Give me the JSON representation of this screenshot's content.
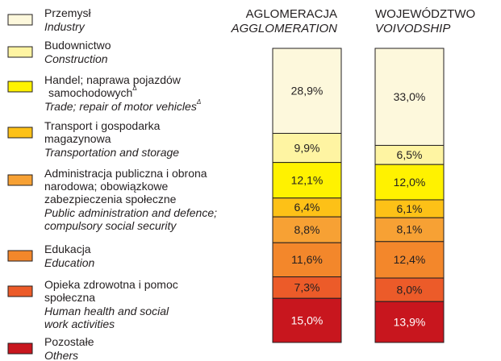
{
  "chart_data": {
    "type": "stacked_bar",
    "categories": [
      "AGLOMERACJA",
      "WOJEWÓDZTWO"
    ],
    "categories_en": [
      "AGGLOMERATION",
      "VOIVODSHIP"
    ],
    "ylim": [
      0,
      100
    ],
    "series": [
      {
        "name": [
          "Przemysł"
        ],
        "name_en": [
          "Industry"
        ],
        "color": "#fdf8dc",
        "values": [
          28.9,
          33.0
        ],
        "value_labels": [
          "28,9%",
          "33,0%"
        ]
      },
      {
        "name": [
          "Budownictwo"
        ],
        "name_en": [
          "Construction"
        ],
        "color": "#fef4a2",
        "values": [
          9.9,
          6.5
        ],
        "value_labels": [
          "9,9%",
          "6,5%"
        ]
      },
      {
        "name": [
          "Handel; naprawa pojazdów",
          "samochodowych"
        ],
        "name_mark": "Δ",
        "name_en": [
          "Trade; repair of motor vehicles"
        ],
        "name_en_mark": "Δ",
        "color": "#fff200",
        "values": [
          12.1,
          12.0
        ],
        "value_labels": [
          "12,1%",
          "12,0%"
        ]
      },
      {
        "name": [
          "Transport i gospodarka",
          "magazynowa"
        ],
        "name_en": [
          "Transportation and storage"
        ],
        "color": "#fdc117",
        "values": [
          6.4,
          6.1
        ],
        "value_labels": [
          "6,4%",
          "6,1%"
        ]
      },
      {
        "name": [
          "Administracja publiczna i obrona",
          "narodowa; obowiązkowe",
          "zabezpieczenia społeczne"
        ],
        "name_en": [
          "Public administration and defence;",
          "compulsory social security"
        ],
        "color": "#f7a134",
        "values": [
          8.8,
          8.1
        ],
        "value_labels": [
          "8,8%",
          "8,1%"
        ]
      },
      {
        "name": [
          "Edukacja"
        ],
        "name_en": [
          "Education"
        ],
        "color": "#f3872b",
        "values": [
          11.6,
          12.4
        ],
        "value_labels": [
          "11,6%",
          "12,4%"
        ]
      },
      {
        "name": [
          "Opieka zdrowotna i pomoc",
          "społeczna"
        ],
        "name_en": [
          "Human health and social",
          "work activities"
        ],
        "color": "#ec5b29",
        "values": [
          7.3,
          8.0
        ],
        "value_labels": [
          "7,3%",
          "8,0%"
        ]
      },
      {
        "name": [
          "Pozostałe"
        ],
        "name_en": [
          "Others"
        ],
        "color": "#c8161e",
        "values": [
          15.0,
          13.9
        ],
        "value_labels": [
          "15,0%",
          "13,9%"
        ]
      }
    ]
  }
}
